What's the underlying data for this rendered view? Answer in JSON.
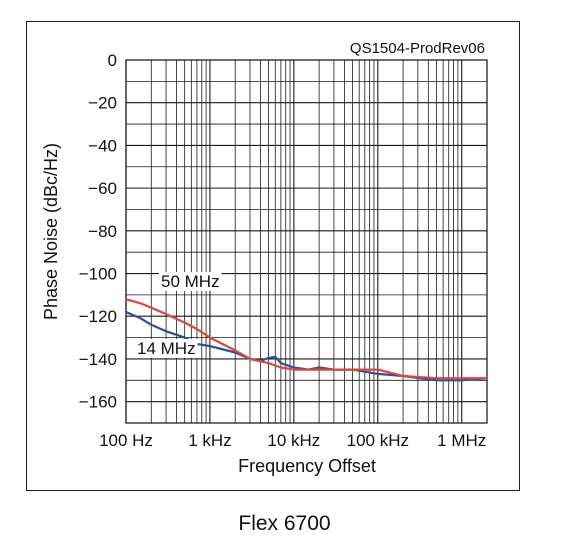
{
  "document_id": "QS1504-ProdRev06",
  "caption": "Flex 6700",
  "chart_data": {
    "type": "line",
    "xlabel": "Frequency Offset",
    "ylabel": "Phase Noise (dBc/Hz)",
    "x_scale": "log",
    "xlim": [
      100,
      2000000
    ],
    "ylim": [
      -170,
      0
    ],
    "x_ticks": [
      {
        "value": 100,
        "label": "100 Hz"
      },
      {
        "value": 1000,
        "label": "1 kHz"
      },
      {
        "value": 10000,
        "label": "10 kHz"
      },
      {
        "value": 100000,
        "label": "100 kHz"
      },
      {
        "value": 1000000,
        "label": "1 MHz"
      }
    ],
    "y_ticks": [
      {
        "value": 0,
        "label": "0"
      },
      {
        "value": -20,
        "label": "−20"
      },
      {
        "value": -40,
        "label": "−40"
      },
      {
        "value": -60,
        "label": "−60"
      },
      {
        "value": -80,
        "label": "−80"
      },
      {
        "value": -100,
        "label": "−100"
      },
      {
        "value": -120,
        "label": "−120"
      },
      {
        "value": -140,
        "label": "−140"
      },
      {
        "value": -160,
        "label": "−160"
      }
    ],
    "grid": true,
    "series": [
      {
        "name": "14 MHz",
        "color": "#2e4e9c",
        "x": [
          100,
          150,
          200,
          300,
          500,
          700,
          1000,
          2000,
          3000,
          4000,
          5000,
          6000,
          7000,
          10000,
          15000,
          20000,
          30000,
          50000,
          100000,
          200000,
          500000,
          1000000,
          2000000
        ],
        "y": [
          -118,
          -121,
          -124,
          -127,
          -130,
          -133,
          -134,
          -137,
          -140,
          -141,
          -139.5,
          -139,
          -142,
          -144,
          -145,
          -144,
          -145,
          -145,
          -147,
          -148,
          -150,
          -150,
          -149
        ]
      },
      {
        "name": "50 MHz",
        "color": "#e0443c",
        "x": [
          100,
          150,
          200,
          300,
          500,
          700,
          1000,
          2000,
          3000,
          5000,
          7000,
          10000,
          20000,
          50000,
          100000,
          200000,
          500000,
          1000000,
          2000000
        ],
        "y": [
          -112,
          -114,
          -116,
          -119,
          -123,
          -126,
          -130,
          -136,
          -140,
          -142,
          -144,
          -145,
          -145,
          -145,
          -145,
          -148,
          -149,
          -149,
          -149
        ]
      }
    ]
  }
}
